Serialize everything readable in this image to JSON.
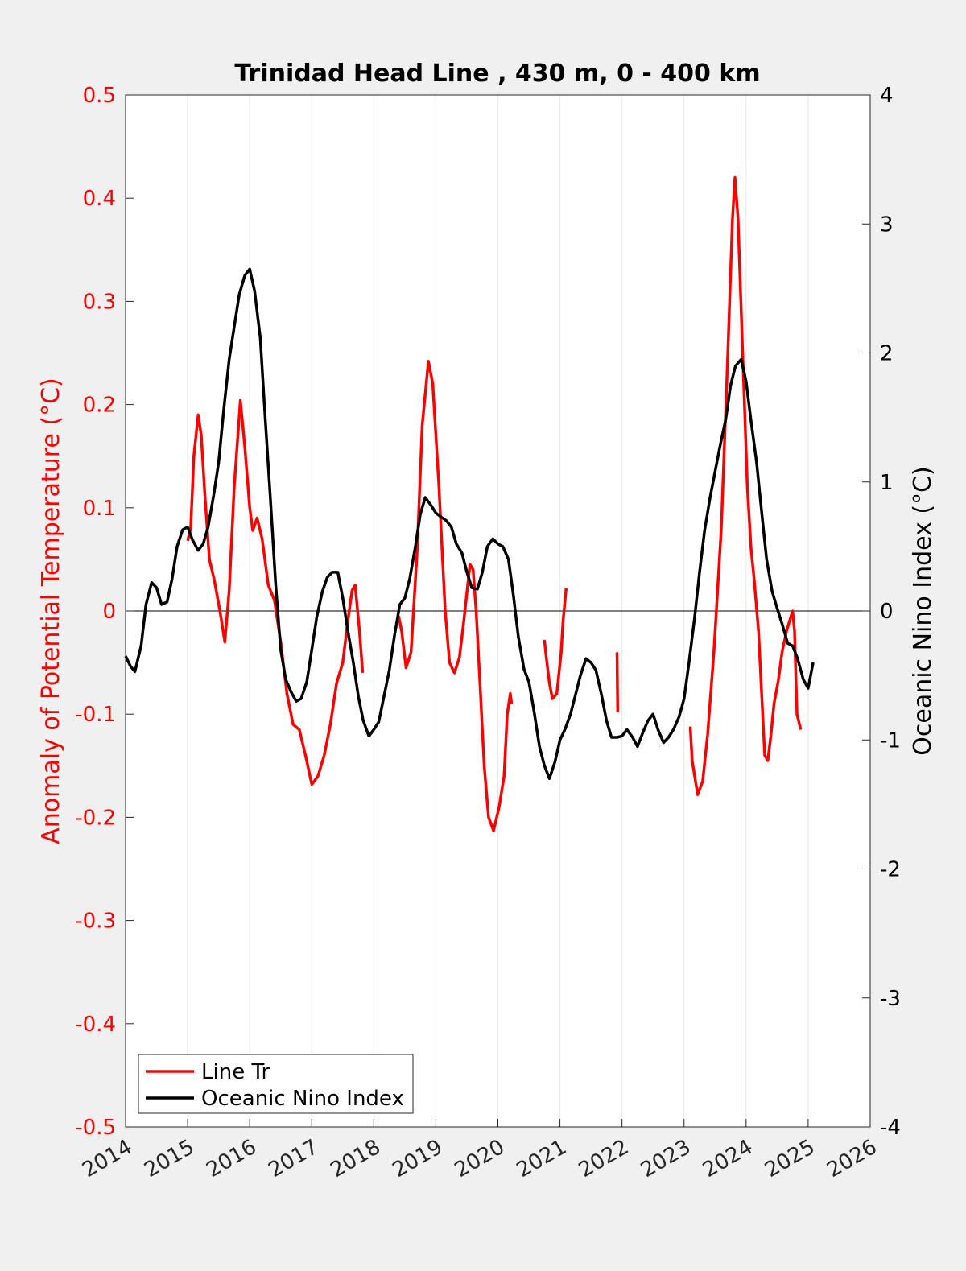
{
  "chart_data": {
    "type": "line",
    "title": "Trinidad Head Line , 430 m, 0 - 400 km",
    "xlim": [
      2014,
      2026
    ],
    "x_ticks": [
      "2014",
      "2015",
      "2016",
      "2017",
      "2018",
      "2019",
      "2020",
      "2021",
      "2022",
      "2023",
      "2024",
      "2025",
      "2026"
    ],
    "grid": "vertical",
    "legend_position": "bottom-left",
    "left_axis": {
      "label": "Anomaly of Potential Temperature (°C)",
      "color": "#ff0000",
      "ylim": [
        -0.5,
        0.5
      ],
      "ticks": [
        "0.5",
        "0.4",
        "0.3",
        "0.2",
        "0.1",
        "0",
        "-0.1",
        "-0.2",
        "-0.3",
        "-0.4",
        "-0.5"
      ]
    },
    "right_axis": {
      "label": "Oceanic Nino Index (°C)",
      "color": "#000000",
      "ylim": [
        -4,
        4
      ],
      "ticks": [
        "4",
        "3",
        "2",
        "1",
        "0",
        "-1",
        "-2",
        "-3",
        "-4"
      ]
    },
    "series": [
      {
        "name": "Line Tr",
        "axis": "left",
        "color": "#ff0000",
        "segments": [
          [
            [
              2015.0,
              0.068
            ],
            [
              2015.05,
              0.08
            ],
            [
              2015.1,
              0.15
            ],
            [
              2015.17,
              0.19
            ],
            [
              2015.22,
              0.17
            ],
            [
              2015.28,
              0.11
            ],
            [
              2015.35,
              0.05
            ],
            [
              2015.43,
              0.03
            ],
            [
              2015.52,
              0.0
            ],
            [
              2015.6,
              -0.03
            ],
            [
              2015.67,
              0.02
            ],
            [
              2015.75,
              0.12
            ],
            [
              2015.85,
              0.204
            ],
            [
              2015.92,
              0.16
            ],
            [
              2016.0,
              0.1
            ],
            [
              2016.05,
              0.078
            ],
            [
              2016.12,
              0.09
            ],
            [
              2016.2,
              0.07
            ],
            [
              2016.3,
              0.025
            ],
            [
              2016.4,
              0.01
            ],
            [
              2016.5,
              -0.03
            ],
            [
              2016.6,
              -0.08
            ],
            [
              2016.7,
              -0.11
            ],
            [
              2016.8,
              -0.115
            ],
            [
              2016.9,
              -0.14
            ],
            [
              2017.0,
              -0.168
            ],
            [
              2017.1,
              -0.16
            ],
            [
              2017.2,
              -0.14
            ],
            [
              2017.3,
              -0.11
            ],
            [
              2017.4,
              -0.07
            ],
            [
              2017.5,
              -0.05
            ],
            [
              2017.58,
              -0.01
            ],
            [
              2017.65,
              0.02
            ],
            [
              2017.7,
              0.025
            ],
            [
              2017.77,
              -0.02
            ],
            [
              2017.82,
              -0.06
            ]
          ],
          [
            [
              2018.4,
              -0.005
            ],
            [
              2018.45,
              -0.02
            ],
            [
              2018.52,
              -0.055
            ],
            [
              2018.6,
              -0.04
            ],
            [
              2018.7,
              0.06
            ],
            [
              2018.78,
              0.18
            ],
            [
              2018.88,
              0.242
            ],
            [
              2018.95,
              0.22
            ],
            [
              2019.05,
              0.12
            ],
            [
              2019.15,
              0.0
            ],
            [
              2019.22,
              -0.05
            ],
            [
              2019.3,
              -0.06
            ],
            [
              2019.38,
              -0.045
            ],
            [
              2019.45,
              -0.01
            ],
            [
              2019.55,
              0.045
            ],
            [
              2019.6,
              0.04
            ],
            [
              2019.65,
              0.0
            ],
            [
              2019.72,
              -0.08
            ],
            [
              2019.78,
              -0.15
            ],
            [
              2019.85,
              -0.2
            ],
            [
              2019.93,
              -0.213
            ],
            [
              2020.02,
              -0.19
            ],
            [
              2020.1,
              -0.16
            ],
            [
              2020.15,
              -0.1
            ],
            [
              2020.2,
              -0.08
            ],
            [
              2020.22,
              -0.09
            ]
          ],
          [
            [
              2020.75,
              -0.028
            ],
            [
              2020.78,
              -0.045
            ],
            [
              2020.83,
              -0.07
            ],
            [
              2020.88,
              -0.085
            ],
            [
              2020.95,
              -0.08
            ],
            [
              2021.02,
              -0.04
            ],
            [
              2021.05,
              -0.01
            ],
            [
              2021.1,
              0.022
            ]
          ],
          [
            [
              2021.92,
              -0.04
            ],
            [
              2021.93,
              -0.098
            ]
          ],
          [
            [
              2023.1,
              -0.112
            ],
            [
              2023.13,
              -0.145
            ],
            [
              2023.22,
              -0.178
            ],
            [
              2023.3,
              -0.165
            ],
            [
              2023.38,
              -0.12
            ],
            [
              2023.48,
              -0.04
            ],
            [
              2023.6,
              0.08
            ],
            [
              2023.7,
              0.24
            ],
            [
              2023.78,
              0.38
            ],
            [
              2023.82,
              0.42
            ],
            [
              2023.87,
              0.38
            ],
            [
              2023.95,
              0.24
            ],
            [
              2024.02,
              0.12
            ],
            [
              2024.08,
              0.06
            ],
            [
              2024.13,
              0.03
            ],
            [
              2024.2,
              -0.02
            ],
            [
              2024.25,
              -0.08
            ],
            [
              2024.3,
              -0.14
            ],
            [
              2024.35,
              -0.145
            ],
            [
              2024.4,
              -0.12
            ],
            [
              2024.45,
              -0.09
            ],
            [
              2024.52,
              -0.067
            ],
            [
              2024.58,
              -0.04
            ],
            [
              2024.65,
              -0.02
            ],
            [
              2024.7,
              -0.01
            ],
            [
              2024.75,
              0.0
            ],
            [
              2024.78,
              -0.02
            ],
            [
              2024.82,
              -0.1
            ],
            [
              2024.88,
              -0.115
            ]
          ]
        ]
      },
      {
        "name": "Oceanic Nino Index",
        "axis": "right",
        "color": "#000000",
        "segments": [
          [
            [
              2014.0,
              -0.35
            ],
            [
              2014.08,
              -0.43
            ],
            [
              2014.15,
              -0.47
            ],
            [
              2014.25,
              -0.27
            ],
            [
              2014.33,
              0.05
            ],
            [
              2014.42,
              0.22
            ],
            [
              2014.5,
              0.18
            ],
            [
              2014.58,
              0.05
            ],
            [
              2014.67,
              0.07
            ],
            [
              2014.75,
              0.25
            ],
            [
              2014.83,
              0.5
            ],
            [
              2014.92,
              0.63
            ],
            [
              2015.0,
              0.65
            ],
            [
              2015.08,
              0.55
            ],
            [
              2015.17,
              0.47
            ],
            [
              2015.25,
              0.52
            ],
            [
              2015.33,
              0.65
            ],
            [
              2015.42,
              0.9
            ],
            [
              2015.5,
              1.15
            ],
            [
              2015.58,
              1.55
            ],
            [
              2015.67,
              1.95
            ],
            [
              2015.75,
              2.2
            ],
            [
              2015.83,
              2.45
            ],
            [
              2015.92,
              2.6
            ],
            [
              2016.0,
              2.65
            ],
            [
              2016.08,
              2.48
            ],
            [
              2016.17,
              2.12
            ],
            [
              2016.25,
              1.5
            ],
            [
              2016.33,
              0.9
            ],
            [
              2016.42,
              0.2
            ],
            [
              2016.5,
              -0.3
            ],
            [
              2016.58,
              -0.53
            ],
            [
              2016.67,
              -0.63
            ],
            [
              2016.75,
              -0.7
            ],
            [
              2016.83,
              -0.68
            ],
            [
              2016.92,
              -0.55
            ],
            [
              2017.0,
              -0.3
            ],
            [
              2017.08,
              -0.05
            ],
            [
              2017.17,
              0.15
            ],
            [
              2017.25,
              0.26
            ],
            [
              2017.33,
              0.3
            ],
            [
              2017.42,
              0.3
            ],
            [
              2017.5,
              0.1
            ],
            [
              2017.58,
              -0.15
            ],
            [
              2017.67,
              -0.4
            ],
            [
              2017.75,
              -0.66
            ],
            [
              2017.83,
              -0.85
            ],
            [
              2017.92,
              -0.97
            ],
            [
              2018.0,
              -0.92
            ],
            [
              2018.08,
              -0.86
            ],
            [
              2018.17,
              -0.65
            ],
            [
              2018.25,
              -0.46
            ],
            [
              2018.33,
              -0.2
            ],
            [
              2018.42,
              0.05
            ],
            [
              2018.5,
              0.1
            ],
            [
              2018.58,
              0.25
            ],
            [
              2018.67,
              0.5
            ],
            [
              2018.75,
              0.75
            ],
            [
              2018.83,
              0.88
            ],
            [
              2018.92,
              0.82
            ],
            [
              2019.0,
              0.76
            ],
            [
              2019.08,
              0.73
            ],
            [
              2019.17,
              0.7
            ],
            [
              2019.25,
              0.65
            ],
            [
              2019.33,
              0.52
            ],
            [
              2019.42,
              0.45
            ],
            [
              2019.5,
              0.3
            ],
            [
              2019.58,
              0.18
            ],
            [
              2019.67,
              0.17
            ],
            [
              2019.75,
              0.3
            ],
            [
              2019.83,
              0.5
            ],
            [
              2019.92,
              0.56
            ],
            [
              2020.0,
              0.52
            ],
            [
              2020.08,
              0.5
            ],
            [
              2020.17,
              0.4
            ],
            [
              2020.25,
              0.12
            ],
            [
              2020.33,
              -0.2
            ],
            [
              2020.42,
              -0.45
            ],
            [
              2020.5,
              -0.55
            ],
            [
              2020.58,
              -0.77
            ],
            [
              2020.67,
              -1.05
            ],
            [
              2020.75,
              -1.2
            ],
            [
              2020.83,
              -1.3
            ],
            [
              2020.92,
              -1.17
            ],
            [
              2021.0,
              -1.0
            ],
            [
              2021.08,
              -0.92
            ],
            [
              2021.17,
              -0.8
            ],
            [
              2021.25,
              -0.65
            ],
            [
              2021.33,
              -0.5
            ],
            [
              2021.42,
              -0.37
            ],
            [
              2021.5,
              -0.4
            ],
            [
              2021.58,
              -0.46
            ],
            [
              2021.67,
              -0.65
            ],
            [
              2021.75,
              -0.85
            ],
            [
              2021.83,
              -0.98
            ],
            [
              2021.92,
              -0.98
            ],
            [
              2022.0,
              -0.97
            ],
            [
              2022.08,
              -0.92
            ],
            [
              2022.17,
              -0.98
            ],
            [
              2022.25,
              -1.05
            ],
            [
              2022.33,
              -0.95
            ],
            [
              2022.42,
              -0.85
            ],
            [
              2022.5,
              -0.8
            ],
            [
              2022.58,
              -0.92
            ],
            [
              2022.67,
              -1.02
            ],
            [
              2022.75,
              -0.98
            ],
            [
              2022.83,
              -0.92
            ],
            [
              2022.92,
              -0.82
            ],
            [
              2023.0,
              -0.68
            ],
            [
              2023.08,
              -0.4
            ],
            [
              2023.17,
              -0.05
            ],
            [
              2023.25,
              0.3
            ],
            [
              2023.33,
              0.62
            ],
            [
              2023.42,
              0.88
            ],
            [
              2023.5,
              1.08
            ],
            [
              2023.58,
              1.28
            ],
            [
              2023.67,
              1.48
            ],
            [
              2023.75,
              1.75
            ],
            [
              2023.83,
              1.9
            ],
            [
              2023.92,
              1.95
            ],
            [
              2024.0,
              1.78
            ],
            [
              2024.08,
              1.47
            ],
            [
              2024.17,
              1.15
            ],
            [
              2024.25,
              0.77
            ],
            [
              2024.33,
              0.4
            ],
            [
              2024.42,
              0.15
            ],
            [
              2024.5,
              0.02
            ],
            [
              2024.58,
              -0.1
            ],
            [
              2024.67,
              -0.25
            ],
            [
              2024.75,
              -0.27
            ],
            [
              2024.83,
              -0.37
            ],
            [
              2024.92,
              -0.53
            ],
            [
              2025.0,
              -0.6
            ],
            [
              2025.08,
              -0.4
            ]
          ]
        ]
      }
    ],
    "zero_line": true
  }
}
